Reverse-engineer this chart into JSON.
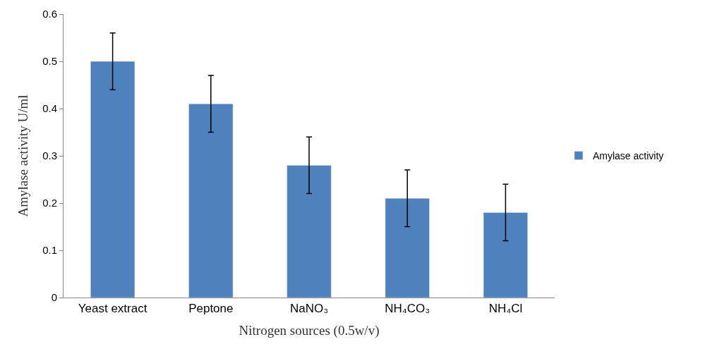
{
  "chart_data": {
    "type": "bar",
    "xlabel": "Nitrogen sources (0.5w/v)",
    "ylabel": "Amylase activity U/ml",
    "categories": [
      "Yeast extract",
      "Peptone",
      "NaNO₃",
      "NH₄CO₃",
      "NH₄Cl"
    ],
    "series": [
      {
        "name": "Amylase activity",
        "color": "#4f81bd",
        "values": [
          0.5,
          0.41,
          0.28,
          0.21,
          0.18
        ],
        "errors": [
          0.06,
          0.06,
          0.06,
          0.06,
          0.06
        ]
      }
    ],
    "ylim": [
      0,
      0.6
    ],
    "yticks": [
      0,
      0.1,
      0.2,
      0.3,
      0.4,
      0.5,
      0.6
    ],
    "legend": "right"
  }
}
